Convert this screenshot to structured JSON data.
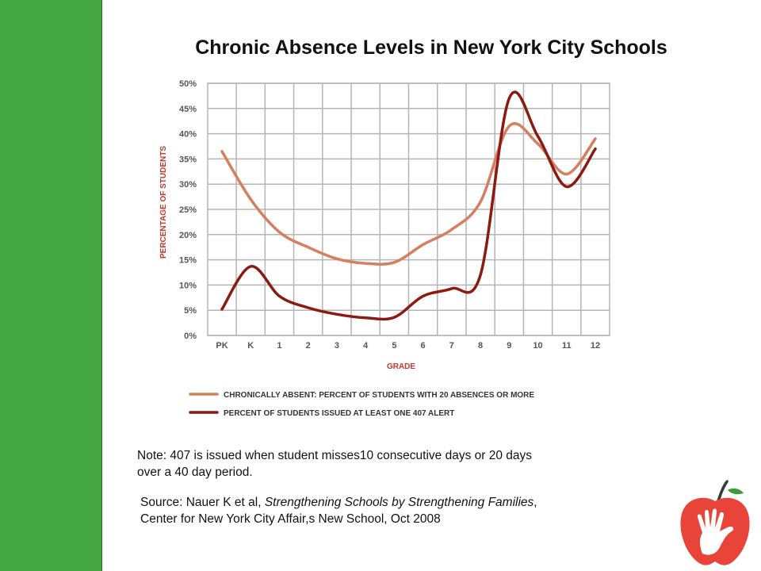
{
  "colors": {
    "sidebar": "#45a843",
    "accent_red": "#c0392b",
    "series_light": "#d47f5f",
    "series_dark": "#8b1a10",
    "grid": "#b5b5b5",
    "axis_text": "#555555",
    "axis_title": "#c0392b"
  },
  "title": "Chronic Absence Levels in New York City Schools",
  "note": {
    "line1": "Note:  407 is issued when student misses10 consecutive days or 20 days",
    "line2": "over a 40 day period."
  },
  "source": {
    "prefix": "Source: Nauer K et al, ",
    "title_italic": "Strengthening Schools by Strengthening Families",
    "suffix": ",",
    "line2": "Center for New York City Affair,s New School, Oct 2008"
  },
  "logo": {
    "icon": "apple-hand-icon"
  },
  "chart_data": {
    "type": "line",
    "title": "",
    "xlabel": "GRADE",
    "ylabel": "PERCENTAGE OF STUDENTS",
    "categories": [
      "PK",
      "K",
      "1",
      "2",
      "3",
      "4",
      "5",
      "6",
      "7",
      "8",
      "9",
      "10",
      "11",
      "12"
    ],
    "y_ticks": [
      "0%",
      "5%",
      "10%",
      "15%",
      "20%",
      "25%",
      "30%",
      "35%",
      "40%",
      "45%",
      "50%"
    ],
    "ylim": [
      0,
      50
    ],
    "grid": true,
    "legend_position": "bottom",
    "series": [
      {
        "name": "CHRONICALLY ABSENT: PERCENT OF STUDENTS WITH 20 ABSENCES OR MORE",
        "color": "#d47f5f",
        "values": [
          36.5,
          27,
          20.5,
          17.5,
          15.2,
          14.3,
          14.5,
          18,
          21,
          26.5,
          41.5,
          38,
          32,
          39
        ]
      },
      {
        "name": "PERCENT OF STUDENTS ISSUED AT LEAST ONE 407 ALERT",
        "color": "#8b1a10",
        "values": [
          5.2,
          13.7,
          7.8,
          5.5,
          4.2,
          3.5,
          3.6,
          7.8,
          9.3,
          12,
          47,
          39.5,
          29.5,
          37
        ]
      }
    ]
  }
}
